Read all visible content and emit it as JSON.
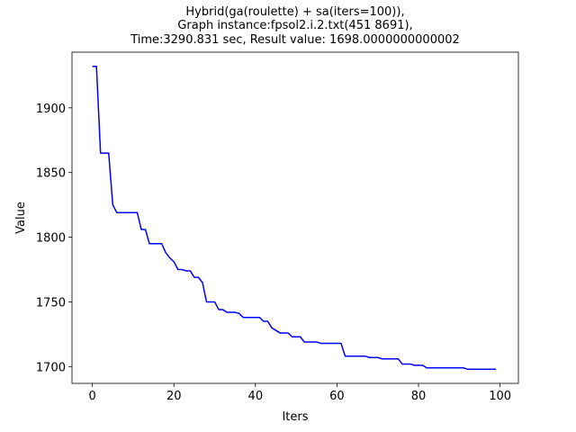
{
  "chart_data": {
    "type": "line",
    "title_lines": [
      "Hybrid(ga(roulette) + sa(iters=100)),",
      "Graph instance:fpsol2.i.2.txt(451 8691),",
      "Time:3290.831 sec, Result value: 1698.0000000000002"
    ],
    "xlabel": "Iters",
    "ylabel": "Value",
    "xlim": [
      -5,
      104.5
    ],
    "ylim": [
      1687,
      1943
    ],
    "xticks": [
      0,
      20,
      40,
      60,
      80,
      100
    ],
    "yticks": [
      1700,
      1750,
      1800,
      1850,
      1900
    ],
    "grid": false,
    "series": [
      {
        "color": "#0000ff",
        "x": [
          0,
          1,
          2,
          3,
          4,
          5,
          6,
          7,
          8,
          9,
          10,
          11,
          12,
          13,
          14,
          15,
          16,
          17,
          18,
          19,
          20,
          21,
          22,
          23,
          24,
          25,
          26,
          27,
          28,
          29,
          30,
          31,
          32,
          33,
          34,
          35,
          36,
          37,
          38,
          39,
          40,
          41,
          42,
          43,
          44,
          45,
          46,
          47,
          48,
          49,
          50,
          51,
          52,
          53,
          54,
          55,
          56,
          57,
          58,
          59,
          60,
          61,
          62,
          63,
          64,
          65,
          66,
          67,
          68,
          69,
          70,
          71,
          72,
          73,
          74,
          75,
          76,
          77,
          78,
          79,
          80,
          81,
          82,
          83,
          84,
          85,
          86,
          87,
          88,
          89,
          90,
          91,
          92,
          93,
          94,
          95,
          96,
          97,
          98,
          99
        ],
        "values": [
          1932,
          1932,
          1865,
          1865,
          1865,
          1825,
          1819,
          1819,
          1819,
          1819,
          1819,
          1819,
          1806,
          1806,
          1795,
          1795,
          1795,
          1795,
          1788,
          1784,
          1781,
          1775,
          1775,
          1774,
          1774,
          1769,
          1769,
          1765,
          1750,
          1750,
          1750,
          1744,
          1744,
          1742,
          1742,
          1742,
          1741,
          1738,
          1738,
          1738,
          1738,
          1738,
          1735,
          1735,
          1730,
          1728,
          1726,
          1726,
          1726,
          1723,
          1723,
          1723,
          1719,
          1719,
          1719,
          1719,
          1718,
          1718,
          1718,
          1718,
          1718,
          1718,
          1708,
          1708,
          1708,
          1708,
          1708,
          1708,
          1707,
          1707,
          1707,
          1706,
          1706,
          1706,
          1706,
          1706,
          1702,
          1702,
          1702,
          1701,
          1701,
          1701,
          1699,
          1699,
          1699,
          1699,
          1699,
          1699,
          1699,
          1699,
          1699,
          1699,
          1698,
          1698,
          1698,
          1698,
          1698,
          1698,
          1698,
          1698
        ]
      }
    ]
  }
}
